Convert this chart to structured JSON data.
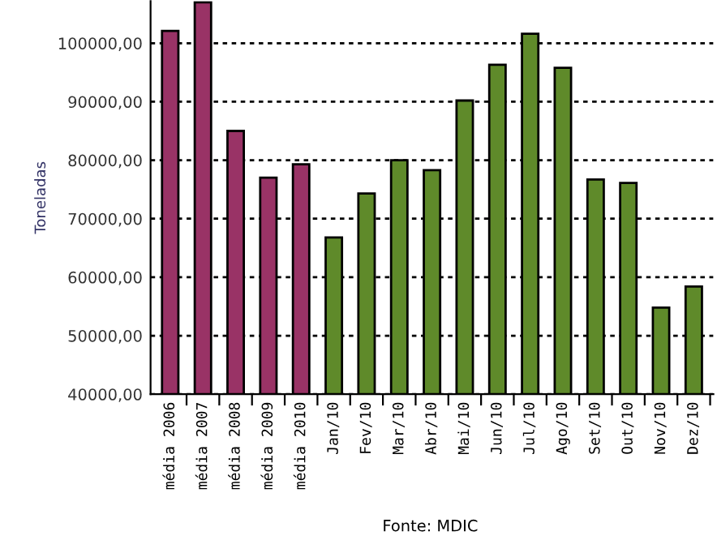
{
  "chart_data": {
    "type": "bar",
    "ylabel": "Toneladas",
    "categories": [
      "média 2006",
      "média 2007",
      "média 2008",
      "média 2009",
      "média 2010",
      "Jan/10",
      "Fev/10",
      "Mar/10",
      "Abr/10",
      "Mai/10",
      "Jun/10",
      "Jul/10",
      "Ago/10",
      "Set/10",
      "Out/10",
      "Nov/10",
      "Dez/10"
    ],
    "values": [
      102100,
      107000,
      85000,
      77000,
      79300,
      66800,
      74300,
      80000,
      78300,
      90200,
      96300,
      101600,
      95800,
      76700,
      76100,
      54800,
      58400
    ],
    "colors": [
      "#993366",
      "#993366",
      "#993366",
      "#993366",
      "#993366",
      "#5f8a2a",
      "#5f8a2a",
      "#5f8a2a",
      "#5f8a2a",
      "#5f8a2a",
      "#5f8a2a",
      "#5f8a2a",
      "#5f8a2a",
      "#5f8a2a",
      "#5f8a2a",
      "#5f8a2a",
      "#5f8a2a"
    ],
    "ylim": [
      40000,
      107200
    ],
    "yticks": [
      {
        "value": 40000,
        "label": "40000,00"
      },
      {
        "value": 50000,
        "label": "50000,00"
      },
      {
        "value": 60000,
        "label": "60000,00"
      },
      {
        "value": 70000,
        "label": "70000,00"
      },
      {
        "value": 80000,
        "label": "80000,00"
      },
      {
        "value": 90000,
        "label": "90000,00"
      },
      {
        "value": 100000,
        "label": "100000,00"
      }
    ],
    "grid": "y",
    "line_style": "dotted",
    "annotations": [
      "Fonte: MDIC"
    ]
  }
}
